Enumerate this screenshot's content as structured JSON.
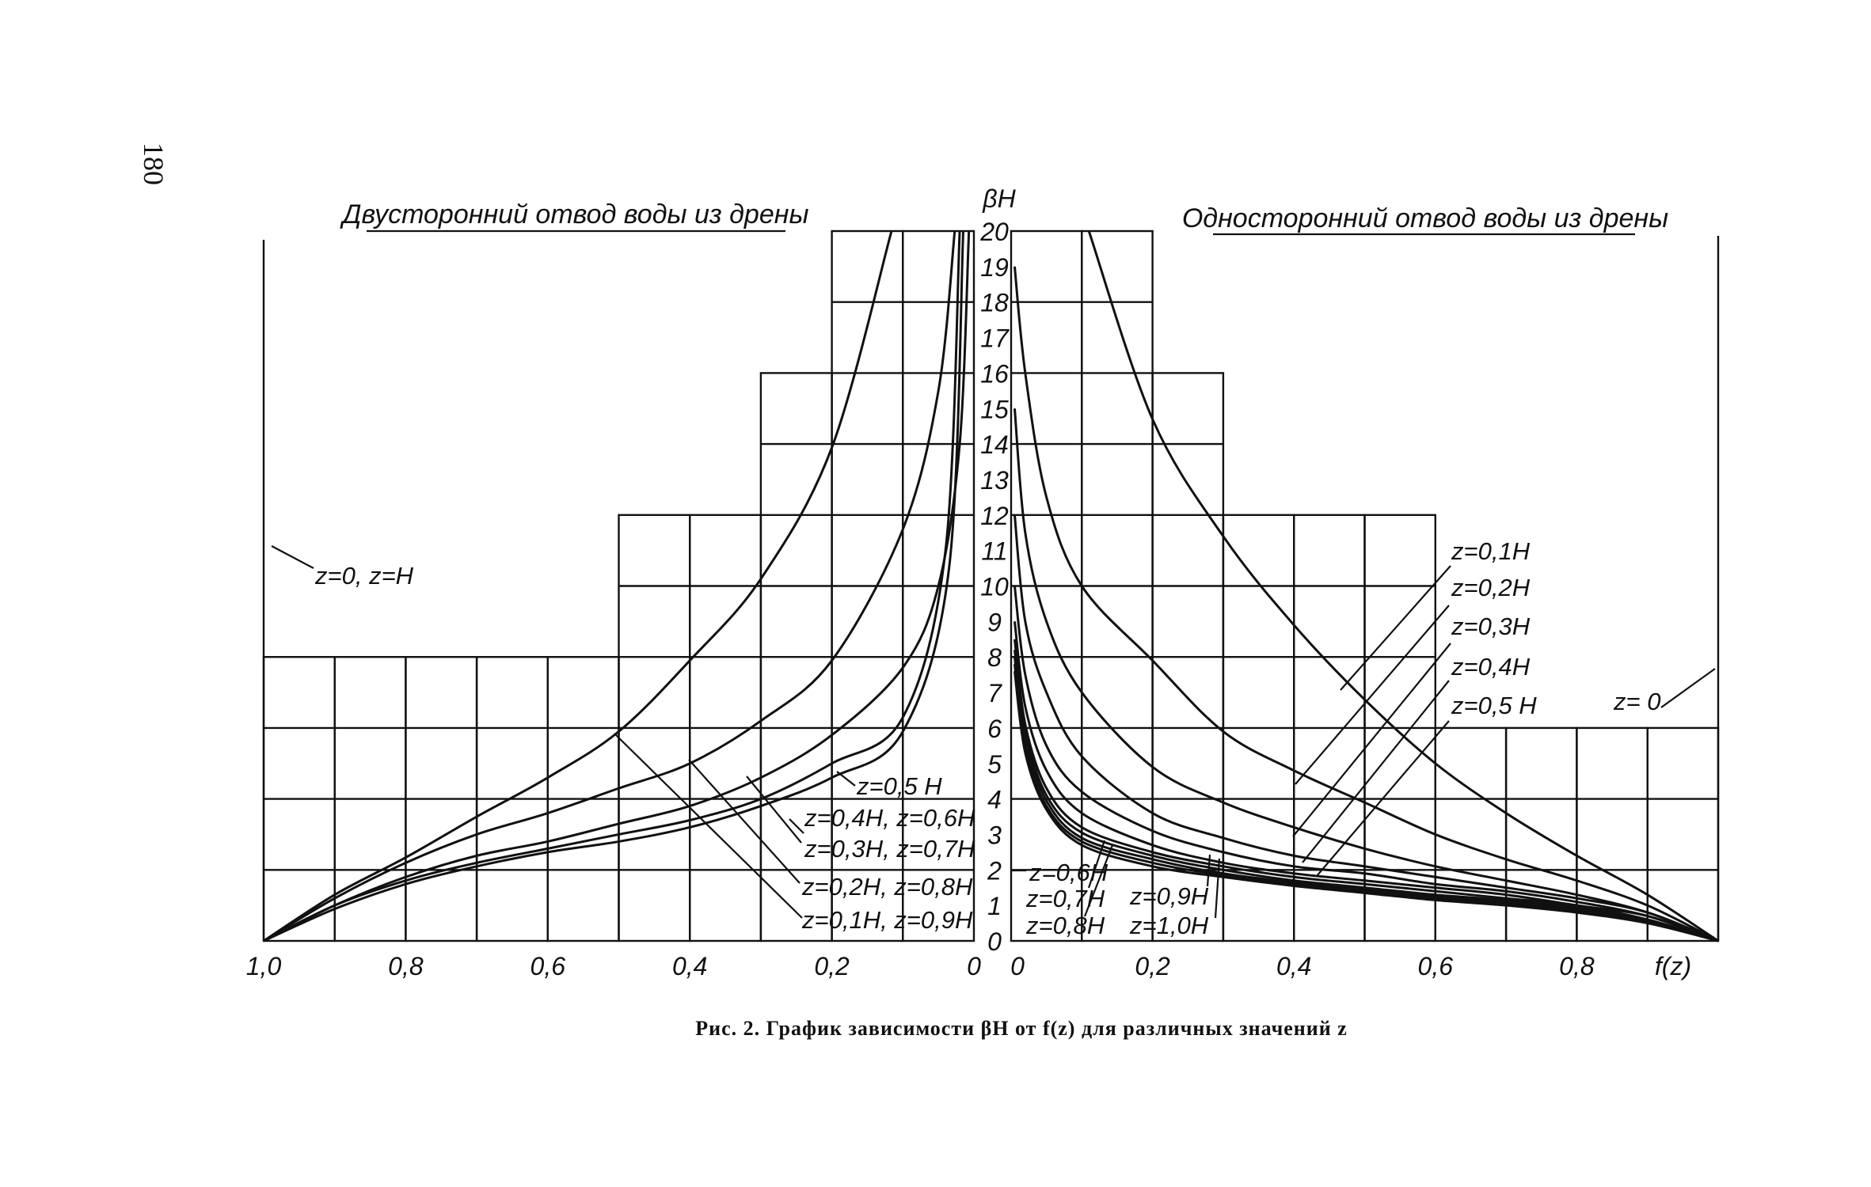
{
  "page_number": "180",
  "caption": "Рис. 2. График зависимости βH от f(z) для различных значений z",
  "chart_data": [
    {
      "type": "line",
      "title": "Двусторонний отвод воды из дрены",
      "xlabel": "",
      "ylabel": "βH",
      "xlim": [
        1.0,
        0
      ],
      "ylim": [
        0,
        20
      ],
      "x_tick_labels": [
        "1,0",
        "0,8",
        "0,6",
        "0,4",
        "0,2",
        "0"
      ],
      "x_ticks": [
        1.0,
        0.8,
        0.6,
        0.4,
        0.2,
        0
      ],
      "grid": true,
      "grid_top_by_decile": [
        20,
        20,
        16,
        12,
        12,
        8,
        8,
        8,
        8,
        8
      ],
      "axis_label_annotation": "z=0, z=H",
      "series": [
        {
          "name": "z=0,1H, z=0,9H",
          "x": [
            0.116,
            0.2,
            0.3,
            0.4,
            0.5,
            0.6,
            0.7,
            0.8,
            0.9,
            1.0
          ],
          "y": [
            20,
            13.9,
            10.2,
            7.9,
            5.9,
            4.6,
            3.5,
            2.35,
            1.3,
            0
          ]
        },
        {
          "name": "z=0,2H, z=0,8H",
          "x": [
            0.027,
            0.05,
            0.1,
            0.2,
            0.3,
            0.4,
            0.5,
            0.6,
            0.7,
            0.8,
            0.9,
            1.0
          ],
          "y": [
            20,
            15.5,
            11.6,
            7.9,
            6.2,
            5.0,
            4.3,
            3.6,
            3.0,
            2.2,
            1.2,
            0
          ]
        },
        {
          "name": "z=0,3H, z=0,7H",
          "x": [
            0.007,
            0.02,
            0.05,
            0.1,
            0.2,
            0.3,
            0.4,
            0.5,
            0.6,
            0.7,
            0.8,
            0.9,
            1.0
          ],
          "y": [
            20,
            14,
            10,
            7.7,
            5.8,
            4.6,
            3.8,
            3.3,
            2.8,
            2.4,
            1.8,
            1.0,
            0
          ]
        },
        {
          "name": "z=0,4H, z=0,6H",
          "x": [
            0.02,
            0.04,
            0.1,
            0.2,
            0.3,
            0.4,
            0.5,
            0.6,
            0.7,
            0.8,
            0.9,
            1.0
          ],
          "y": [
            20,
            11,
            6.3,
            5.0,
            4.0,
            3.4,
            3.0,
            2.6,
            2.2,
            1.7,
            1.0,
            0
          ]
        },
        {
          "name": "z=0,5H",
          "x": [
            0.015,
            0.035,
            0.1,
            0.2,
            0.3,
            0.4,
            0.5,
            0.6,
            0.7,
            0.8,
            0.9,
            1.0
          ],
          "y": [
            20,
            10.5,
            5.9,
            4.6,
            3.8,
            3.2,
            2.8,
            2.5,
            2.1,
            1.6,
            0.9,
            0
          ]
        }
      ]
    },
    {
      "type": "line",
      "title": "Односторонний отвод воды из дрены",
      "xlabel": "f(z)",
      "ylabel": "βH",
      "xlim": [
        0,
        1.0
      ],
      "ylim": [
        0,
        20
      ],
      "x_tick_labels": [
        "0",
        "0,2",
        "0,4",
        "0,6",
        "0,8"
      ],
      "x_ticks": [
        0,
        0.2,
        0.4,
        0.6,
        0.8
      ],
      "y_tick_labels": [
        "0",
        "1",
        "2",
        "3",
        "4",
        "5",
        "6",
        "7",
        "8",
        "9",
        "10",
        "11",
        "12",
        "13",
        "14",
        "15",
        "16",
        "17",
        "18",
        "19",
        "20"
      ],
      "grid": true,
      "grid_top_by_decile": [
        20,
        20,
        16,
        12,
        12,
        12,
        6,
        6,
        6,
        6
      ],
      "series": [
        {
          "name": "z=0",
          "x": [
            0.11,
            0.2,
            0.3,
            0.4,
            0.5,
            0.6,
            0.7,
            0.8,
            0.9,
            1.0
          ],
          "y": [
            20,
            14.7,
            11.4,
            8.9,
            6.8,
            5.0,
            3.6,
            2.4,
            1.3,
            0
          ]
        },
        {
          "name": "z=0,1H",
          "x": [
            0.005,
            0.02,
            0.05,
            0.1,
            0.2,
            0.3,
            0.4,
            0.5,
            0.6,
            0.7,
            0.8,
            0.9,
            1.0
          ],
          "y": [
            19,
            16,
            12.5,
            10.0,
            7.9,
            5.9,
            4.8,
            3.9,
            3.0,
            2.3,
            1.7,
            1.0,
            0
          ]
        },
        {
          "name": "z=0,2H",
          "x": [
            0.005,
            0.02,
            0.05,
            0.1,
            0.2,
            0.3,
            0.4,
            0.5,
            0.6,
            0.7,
            0.8,
            0.9,
            1.0
          ],
          "y": [
            15,
            11.5,
            9,
            7.0,
            4.9,
            3.9,
            3.2,
            2.6,
            2.1,
            1.7,
            1.3,
            0.8,
            0
          ]
        },
        {
          "name": "z=0,3H",
          "x": [
            0.005,
            0.02,
            0.05,
            0.1,
            0.2,
            0.3,
            0.4,
            0.5,
            0.6,
            0.7,
            0.8,
            0.9,
            1.0
          ],
          "y": [
            12,
            9,
            7,
            5.2,
            3.6,
            2.9,
            2.4,
            2.1,
            1.8,
            1.5,
            1.2,
            0.8,
            0
          ]
        },
        {
          "name": "z=0,4H",
          "x": [
            0.005,
            0.02,
            0.05,
            0.1,
            0.2,
            0.3,
            0.4,
            0.5,
            0.6,
            0.7,
            0.8,
            0.9,
            1.0
          ],
          "y": [
            10,
            7.5,
            5.5,
            4.2,
            3.1,
            2.5,
            2.1,
            1.9,
            1.6,
            1.4,
            1.1,
            0.7,
            0
          ]
        },
        {
          "name": "z=0,5H",
          "x": [
            0.005,
            0.02,
            0.05,
            0.1,
            0.2,
            0.3,
            0.4,
            0.5,
            0.6,
            0.7,
            0.8,
            0.9,
            1.0
          ],
          "y": [
            9,
            6.6,
            4.8,
            3.6,
            2.7,
            2.2,
            1.9,
            1.7,
            1.5,
            1.3,
            1.0,
            0.7,
            0
          ]
        },
        {
          "name": "z=0,6H",
          "x": [
            0.005,
            0.02,
            0.05,
            0.1,
            0.2,
            0.3,
            0.4,
            0.5,
            0.6,
            0.7,
            0.8,
            0.9,
            1.0
          ],
          "y": [
            8.5,
            6.1,
            4.3,
            3.2,
            2.5,
            2.1,
            1.8,
            1.6,
            1.4,
            1.2,
            1.0,
            0.6,
            0
          ]
        },
        {
          "name": "z=0,7H",
          "x": [
            0.005,
            0.02,
            0.05,
            0.1,
            0.2,
            0.3,
            0.4,
            0.5,
            0.6,
            0.7,
            0.8,
            0.9,
            1.0
          ],
          "y": [
            8.2,
            5.9,
            4.1,
            3.05,
            2.4,
            2.0,
            1.7,
            1.5,
            1.3,
            1.15,
            0.95,
            0.6,
            0
          ]
        },
        {
          "name": "z=0,8H",
          "x": [
            0.005,
            0.02,
            0.05,
            0.1,
            0.2,
            0.3,
            0.4,
            0.5,
            0.6,
            0.7,
            0.8,
            0.9,
            1.0
          ],
          "y": [
            8.0,
            5.7,
            3.95,
            2.9,
            2.3,
            1.9,
            1.65,
            1.45,
            1.25,
            1.1,
            0.9,
            0.55,
            0
          ]
        },
        {
          "name": "z=0,9H",
          "x": [
            0.005,
            0.02,
            0.05,
            0.1,
            0.2,
            0.3,
            0.4,
            0.5,
            0.6,
            0.7,
            0.8,
            0.9,
            1.0
          ],
          "y": [
            7.8,
            5.5,
            3.8,
            2.8,
            2.2,
            1.85,
            1.6,
            1.4,
            1.2,
            1.05,
            0.85,
            0.55,
            0
          ]
        },
        {
          "name": "z=1,0H",
          "x": [
            0.005,
            0.02,
            0.05,
            0.1,
            0.2,
            0.3,
            0.4,
            0.5,
            0.6,
            0.7,
            0.8,
            0.9,
            1.0
          ],
          "y": [
            7.6,
            5.3,
            3.7,
            2.7,
            2.1,
            1.8,
            1.55,
            1.35,
            1.15,
            1.0,
            0.8,
            0.5,
            0
          ]
        }
      ]
    }
  ],
  "labels": {
    "y_axis": "βH",
    "left_title": "Двусторонний отвод воды из дрены",
    "right_title": "Односторонний отвод воды из дрены",
    "left_axis_note": "z=0, z=H",
    "left": [
      "z=0,5 H",
      "z=0,4H, z=0,6H",
      "z=0,3H, z=0,7H",
      "z=0,2H, z=0,8H",
      "z=0,1H, z=0,9H"
    ],
    "right": [
      "z=0,1H",
      "z=0,2H",
      "z=0,3H",
      "z=0,4H",
      "z=0,5 H"
    ],
    "right_z0": "z= 0",
    "right_bottom": [
      "z=0,6H",
      "z=0,7H",
      "z=0,8H",
      "z=0,9H",
      "z=1,0H"
    ],
    "x_axis_right": "f(z)"
  }
}
